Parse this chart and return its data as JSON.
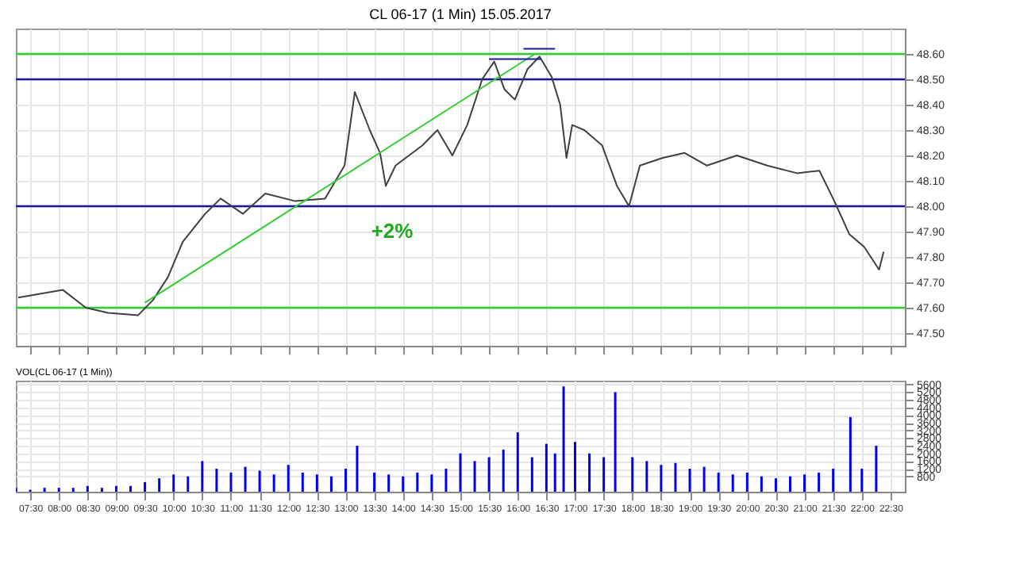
{
  "chart_data": [
    {
      "type": "line",
      "title": "CL 06-17 (1 Min)  15.05.2017",
      "grid": true,
      "tick_labels": "y",
      "xlim": [
        7.25,
        22.75
      ],
      "xticks": [
        7.5,
        8,
        8.5,
        9,
        9.5,
        10,
        10.5,
        11,
        11.5,
        12,
        12.5,
        13,
        13.5,
        14,
        14.5,
        15,
        15.5,
        16,
        16.5,
        17,
        17.5,
        18,
        18.5,
        19,
        19.5,
        20,
        20.5,
        21,
        21.5,
        22,
        22.5
      ],
      "ylim": [
        47.45,
        48.7
      ],
      "yticks": [
        {
          "value": 47.5,
          "label": "47.50"
        },
        {
          "value": 47.6,
          "label": "47.60"
        },
        {
          "value": 47.7,
          "label": "47.70"
        },
        {
          "value": 47.8,
          "label": "47.80"
        },
        {
          "value": 47.9,
          "label": "47.90"
        },
        {
          "value": 48,
          "label": "48.00"
        },
        {
          "value": 48.1,
          "label": "48.10"
        },
        {
          "value": 48.2,
          "label": "48.20"
        },
        {
          "value": 48.3,
          "label": "48.30"
        },
        {
          "value": 48.4,
          "label": "48.40"
        },
        {
          "value": 48.5,
          "label": "48.50"
        },
        {
          "value": 48.6,
          "label": "48.60"
        }
      ],
      "series": [
        {
          "color": "#404040",
          "x": [
            7.29,
            8.07,
            8.47,
            8.86,
            9.38,
            9.64,
            9.9,
            10.16,
            10.55,
            10.82,
            11.21,
            11.6,
            12.12,
            12.64,
            12.98,
            13.16,
            13.42,
            13.6,
            13.7,
            13.87,
            14.34,
            14.6,
            14.86,
            15.12,
            15.38,
            15.59,
            15.77,
            15.95,
            16.17,
            16.38,
            16.59,
            16.74,
            16.85,
            16.95,
            17.16,
            17.47,
            17.73,
            17.94,
            18.13,
            18.52,
            18.91,
            19.3,
            19.82,
            20.35,
            20.87,
            21.26,
            21.52,
            21.78,
            22.04,
            22.3,
            22.38
          ],
          "values": [
            47.64,
            47.67,
            47.6,
            47.58,
            47.57,
            47.63,
            47.72,
            47.86,
            47.97,
            48.03,
            47.97,
            48.05,
            48.02,
            48.03,
            48.16,
            48.45,
            48.3,
            48.21,
            48.08,
            48.16,
            48.24,
            48.3,
            48.2,
            48.32,
            48.5,
            48.57,
            48.46,
            48.42,
            48.54,
            48.59,
            48.51,
            48.4,
            48.19,
            48.32,
            48.3,
            48.24,
            48.08,
            48.0,
            48.16,
            48.19,
            48.21,
            48.16,
            48.2,
            48.16,
            48.13,
            48.14,
            48.02,
            47.89,
            47.84,
            47.75,
            47.82
          ]
        },
        {
          "type": "line",
          "color": "#33cc33",
          "x": [
            9.5,
            16.3
          ],
          "values": [
            47.62,
            48.6
          ]
        },
        {
          "type": "line",
          "color": "#1a1a99",
          "x": [
            15.5,
            16.4
          ],
          "values": [
            48.58,
            48.58
          ]
        },
        {
          "type": "line",
          "color": "#1a1a99",
          "x": [
            16.1,
            16.65
          ],
          "values": [
            48.62,
            48.62
          ]
        }
      ],
      "ref_lines": [
        {
          "axis": "y",
          "value": 48.6,
          "color": "#33cc33"
        },
        {
          "axis": "y",
          "value": 48.5,
          "color": "#1a1a99"
        },
        {
          "axis": "y",
          "value": 48.0,
          "color": "#1a1a99"
        },
        {
          "axis": "y",
          "value": 47.6,
          "color": "#33cc33"
        }
      ],
      "annotations": [
        "+2%"
      ]
    },
    {
      "type": "bar",
      "title": "VOL(CL 06-17 (1 Min))",
      "grid": true,
      "xlim": [
        7.25,
        22.75
      ],
      "xticks": [
        {
          "value": 7.5,
          "label": "07:30"
        },
        {
          "value": 8,
          "label": "08:00"
        },
        {
          "value": 8.5,
          "label": "08:30"
        },
        {
          "value": 9,
          "label": "09:00"
        },
        {
          "value": 9.5,
          "label": "09:30"
        },
        {
          "value": 10,
          "label": "10:00"
        },
        {
          "value": 10.5,
          "label": "10:30"
        },
        {
          "value": 11,
          "label": "11:00"
        },
        {
          "value": 11.5,
          "label": "11:30"
        },
        {
          "value": 12,
          "label": "12:00"
        },
        {
          "value": 12.5,
          "label": "12:30"
        },
        {
          "value": 13,
          "label": "13:00"
        },
        {
          "value": 13.5,
          "label": "13:30"
        },
        {
          "value": 14,
          "label": "14:00"
        },
        {
          "value": 14.5,
          "label": "14:30"
        },
        {
          "value": 15,
          "label": "15:00"
        },
        {
          "value": 15.5,
          "label": "15:30"
        },
        {
          "value": 16,
          "label": "16:00"
        },
        {
          "value": 16.5,
          "label": "16:30"
        },
        {
          "value": 17,
          "label": "17:00"
        },
        {
          "value": 17.5,
          "label": "17:30"
        },
        {
          "value": 18,
          "label": "18:00"
        },
        {
          "value": 18.5,
          "label": "18:30"
        },
        {
          "value": 19,
          "label": "19:00"
        },
        {
          "value": 19.5,
          "label": "19:30"
        },
        {
          "value": 20,
          "label": "20:00"
        },
        {
          "value": 20.5,
          "label": "20:30"
        },
        {
          "value": 21,
          "label": "21:00"
        },
        {
          "value": 21.5,
          "label": "21:30"
        },
        {
          "value": 22,
          "label": "22:00"
        },
        {
          "value": 22.5,
          "label": "22:30"
        }
      ],
      "ylim": [
        0,
        5800
      ],
      "yticks": [
        800,
        1200,
        1600,
        2000,
        2400,
        2800,
        3200,
        3600,
        4000,
        4400,
        4800,
        5200,
        5600
      ],
      "series": [
        {
          "color": "#0000ee",
          "x": [
            7.25,
            7.5,
            7.75,
            8,
            8.25,
            8.5,
            8.75,
            9,
            9.25,
            9.5,
            9.75,
            10,
            10.25,
            10.5,
            10.75,
            11,
            11.25,
            11.5,
            11.75,
            12,
            12.25,
            12.5,
            12.75,
            13,
            13.2,
            13.5,
            13.75,
            14,
            14.25,
            14.5,
            14.75,
            15,
            15.25,
            15.5,
            15.75,
            16,
            16.25,
            16.5,
            16.65,
            16.8,
            17,
            17.25,
            17.5,
            17.7,
            18,
            18.25,
            18.5,
            18.75,
            19,
            19.25,
            19.5,
            19.75,
            20,
            20.25,
            20.5,
            20.75,
            21,
            21.25,
            21.5,
            21.8,
            22,
            22.25
          ],
          "values": [
            200,
            100,
            200,
            200,
            200,
            300,
            200,
            300,
            300,
            500,
            700,
            900,
            800,
            1600,
            1200,
            1000,
            1300,
            1100,
            900,
            1400,
            1000,
            900,
            800,
            1200,
            2400,
            1000,
            900,
            800,
            1000,
            900,
            1200,
            2000,
            1600,
            1800,
            2200,
            3100,
            1800,
            2500,
            2000,
            5500,
            2600,
            2000,
            1800,
            5200,
            1800,
            1600,
            1400,
            1500,
            1200,
            1300,
            1000,
            900,
            1000,
            800,
            700,
            800,
            900,
            1000,
            1200,
            3900,
            1200,
            2400
          ]
        }
      ]
    }
  ]
}
